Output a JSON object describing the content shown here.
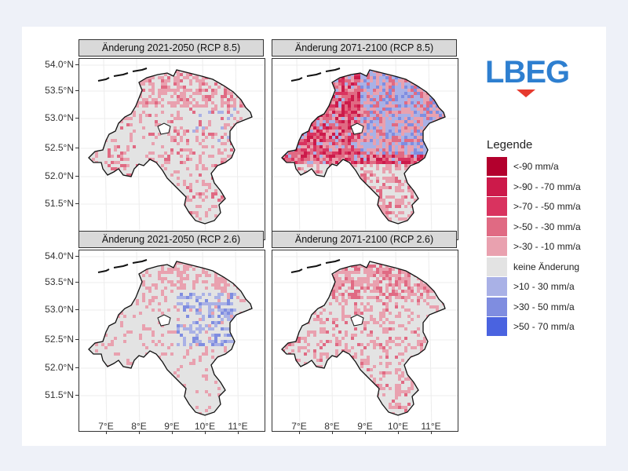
{
  "logo": {
    "text": "LBEG",
    "color": "#2e7fd0",
    "accent": "#e63a2e"
  },
  "panels": [
    {
      "title": "Änderung 2021-2050 (RCP 8.5)",
      "pattern": "mild_dry_north"
    },
    {
      "title": "Änderung 2071-2100 (RCP 8.5)",
      "pattern": "strong_mixed"
    },
    {
      "title": "Änderung 2021-2050 (RCP 2.6)",
      "pattern": "mild_wet_east"
    },
    {
      "title": "Änderung 2071-2100 (RCP 2.6)",
      "pattern": "moderate_dry"
    }
  ],
  "lat_ticks": [
    "54.0°N",
    "53.5°N",
    "53.0°N",
    "52.5°N",
    "52.0°N",
    "51.5°N"
  ],
  "lon_ticks": [
    "7°E",
    "8°E",
    "9°E",
    "10°E",
    "11°E"
  ],
  "legend": {
    "title": "Legende",
    "items": [
      {
        "label": "<-90 mm/a",
        "color": "#b3002d"
      },
      {
        "label": ">-90 - -70 mm/a",
        "color": "#cc1a4a"
      },
      {
        "label": ">-70 - -50 mm/a",
        "color": "#d9335f"
      },
      {
        "label": ">-50 - -30 mm/a",
        "color": "#e06a83"
      },
      {
        "label": ">-30 - -10 mm/a",
        "color": "#e9a1af"
      },
      {
        "label": "keine Änderung",
        "color": "#e3e3e3"
      },
      {
        "label": ">10 - 30 mm/a",
        "color": "#a9b1e6"
      },
      {
        "label": ">30 - 50 mm/a",
        "color": "#7f8de0"
      },
      {
        "label": ">50 - 70 mm/a",
        "color": "#4a63e0"
      }
    ]
  }
}
